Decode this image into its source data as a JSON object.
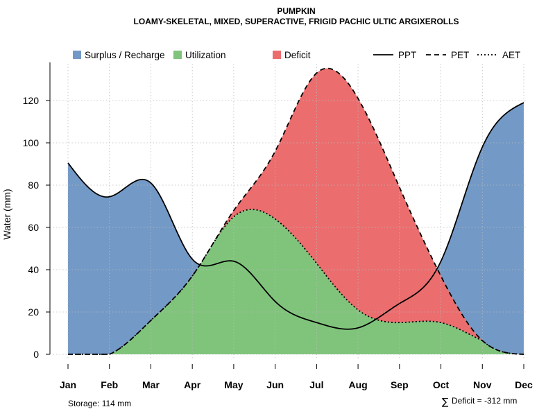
{
  "chart_data": {
    "type": "area",
    "title": "PUMPKIN",
    "subtitle": "LOAMY-SKELETAL, MIXED, SUPERACTIVE, FRIGID PACHIC ULTIC ARGIXEROLLS",
    "ylabel": "Water (mm)",
    "xlabel": "",
    "ylim": [
      0,
      137
    ],
    "yticks": [
      0,
      20,
      40,
      60,
      80,
      100,
      120
    ],
    "grid": true,
    "categories": [
      "Jan",
      "Feb",
      "Mar",
      "Apr",
      "May",
      "Jun",
      "Jul",
      "Aug",
      "Sep",
      "Oct",
      "Nov",
      "Dec"
    ],
    "series": [
      {
        "name": "PPT",
        "line_style": "solid",
        "values": [
          90.5,
          74.5,
          81,
          45,
          44,
          25,
          15,
          12.5,
          24,
          44,
          98,
          119
        ]
      },
      {
        "name": "PET",
        "line_style": "dashed",
        "values": [
          0,
          0,
          16,
          37,
          68,
          96,
          133,
          121,
          79,
          37,
          6.5,
          0
        ]
      },
      {
        "name": "AET",
        "line_style": "dotted",
        "values": [
          0,
          0,
          16,
          37,
          65,
          64,
          43,
          21,
          15,
          15,
          6.5,
          0
        ]
      }
    ],
    "fill_regions": [
      {
        "name": "Surplus / Recharge",
        "color": "#7399C6"
      },
      {
        "name": "Utilization",
        "color": "#80C47C"
      },
      {
        "name": "Deficit",
        "color": "#EB6D6E"
      }
    ],
    "legend": {
      "fills": [
        "Surplus / Recharge",
        "Utilization",
        "Deficit"
      ],
      "lines": [
        "PPT",
        "PET",
        "AET"
      ],
      "placement": "top"
    },
    "annotations": {
      "storage": "Storage: 114 mm",
      "deficit_symbol": "∑",
      "deficit": "Deficit = -312 mm"
    }
  }
}
